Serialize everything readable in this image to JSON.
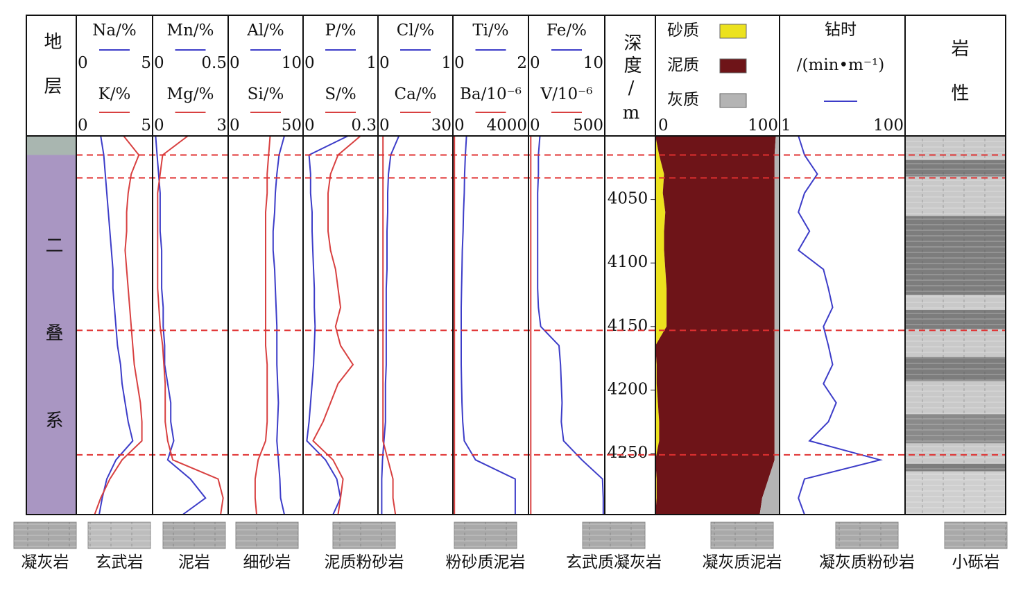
{
  "chart_data": {
    "type": "well_log",
    "strata": {
      "title": "地层",
      "units": [
        {
          "top": 4000,
          "bottom": 4015,
          "color": "#a9b6b0"
        },
        {
          "top": 4015,
          "bottom": 4298,
          "label": "二叠系",
          "color": "#a996c2"
        }
      ]
    },
    "depth": {
      "title": "深度/m",
      "lim": [
        4000,
        4298
      ],
      "ticks": [
        4050,
        4100,
        4150,
        4200,
        4250
      ],
      "values": [
        4000,
        4015,
        4030,
        4045,
        4060,
        4075,
        4090,
        4105,
        4120,
        4135,
        4150,
        4165,
        4180,
        4195,
        4210,
        4225,
        4240,
        4255,
        4270,
        4285,
        4298
      ]
    },
    "tracks": [
      {
        "series": [
          {
            "name": "Na/%",
            "color": "#3c3cc8",
            "xlim": [
              0,
              5
            ],
            "xticks": [
              0,
              5
            ],
            "values": [
              1.6,
              1.8,
              1.9,
              2.0,
              2.1,
              2.2,
              2.3,
              2.4,
              2.4,
              2.5,
              2.6,
              2.7,
              2.9,
              3.0,
              3.2,
              3.4,
              3.7,
              2.6,
              2.0,
              1.7,
              1.5
            ]
          },
          {
            "name": "K/%",
            "color": "#d84040",
            "xlim": [
              0,
              5
            ],
            "xticks": [
              0,
              5
            ],
            "values": [
              3.1,
              4.1,
              3.6,
              3.4,
              3.3,
              3.3,
              3.2,
              3.3,
              3.4,
              3.5,
              3.6,
              3.7,
              3.8,
              4.0,
              4.2,
              4.3,
              4.3,
              3.0,
              2.2,
              1.6,
              1.2
            ]
          }
        ]
      },
      {
        "series": [
          {
            "name": "Mn/%",
            "color": "#3c3cc8",
            "xlim": [
              0,
              0.5
            ],
            "xticks": [
              0,
              0.5
            ],
            "values": [
              0.02,
              0.03,
              0.04,
              0.05,
              0.05,
              0.05,
              0.06,
              0.06,
              0.06,
              0.07,
              0.07,
              0.08,
              0.08,
              0.1,
              0.12,
              0.12,
              0.14,
              0.1,
              0.25,
              0.35,
              0.2
            ]
          },
          {
            "name": "Mg/%",
            "color": "#d84040",
            "xlim": [
              0,
              3
            ],
            "xticks": [
              0,
              3
            ],
            "values": [
              1.4,
              0.4,
              0.3,
              0.2,
              0.2,
              0.2,
              0.2,
              0.2,
              0.2,
              0.25,
              0.3,
              0.4,
              0.45,
              0.5,
              0.5,
              0.5,
              0.6,
              0.8,
              2.6,
              2.8,
              2.7
            ]
          }
        ]
      },
      {
        "series": [
          {
            "name": "Al/%",
            "color": "#3c3cc8",
            "xlim": [
              0,
              10
            ],
            "xticks": [
              0,
              10
            ],
            "values": [
              7.5,
              6.8,
              6.5,
              6.3,
              6.2,
              6.0,
              6.0,
              6.2,
              6.3,
              6.4,
              6.5,
              6.5,
              6.5,
              6.6,
              6.7,
              6.6,
              6.5,
              6.7,
              6.9,
              7.0,
              7.5
            ]
          },
          {
            "name": "Si/%",
            "color": "#d84040",
            "xlim": [
              0,
              50
            ],
            "xticks": [
              0,
              50
            ],
            "values": [
              28,
              27,
              26,
              26,
              25,
              25,
              25,
              25,
              25,
              25,
              25,
              25,
              26,
              26,
              26,
              26,
              25,
              20,
              18,
              18,
              19
            ]
          }
        ]
      },
      {
        "series": [
          {
            "name": "P/%",
            "color": "#3c3cc8",
            "xlim": [
              0,
              1
            ],
            "xticks": [
              0,
              1
            ],
            "values": [
              0.6,
              0.08,
              0.1,
              0.1,
              0.12,
              0.12,
              0.13,
              0.14,
              0.15,
              0.15,
              0.16,
              0.15,
              0.14,
              0.12,
              0.1,
              0.08,
              0.05,
              0.3,
              0.45,
              0.5,
              0.4
            ]
          },
          {
            "name": "S/%",
            "color": "#d84040",
            "xlim": [
              0,
              0.3
            ],
            "xticks": [
              0,
              0.3
            ],
            "values": [
              0.23,
              0.14,
              0.11,
              0.1,
              0.1,
              0.1,
              0.11,
              0.13,
              0.14,
              0.15,
              0.13,
              0.15,
              0.2,
              0.14,
              0.11,
              0.08,
              0.04,
              0.12,
              0.16,
              0.15,
              0.14
            ]
          }
        ]
      },
      {
        "series": [
          {
            "name": "Cl/%",
            "color": "#3c3cc8",
            "xlim": [
              0,
              1
            ],
            "xticks": [
              0,
              1
            ],
            "values": [
              0.28,
              0.17,
              0.14,
              0.13,
              0.13,
              0.12,
              0.12,
              0.12,
              0.11,
              0.11,
              0.11,
              0.11,
              0.11,
              0.1,
              0.1,
              0.1,
              0.08,
              0.06,
              0.05,
              0.05,
              0.05
            ]
          },
          {
            "name": "Ca/%",
            "color": "#d84040",
            "xlim": [
              0,
              30
            ],
            "xticks": [
              0,
              30
            ],
            "values": [
              2,
              2,
              2,
              2,
              2,
              2,
              2,
              2,
              2,
              2,
              2,
              2,
              2,
              2,
              2,
              2,
              2,
              4,
              6,
              6,
              7
            ]
          }
        ]
      },
      {
        "series": [
          {
            "name": "Ti/%",
            "color": "#3c3cc8",
            "xlim": [
              0,
              2
            ],
            "xticks": [
              0,
              2
            ],
            "values": [
              0.36,
              0.33,
              0.31,
              0.3,
              0.28,
              0.27,
              0.25,
              0.24,
              0.23,
              0.22,
              0.22,
              0.22,
              0.22,
              0.23,
              0.24,
              0.26,
              0.3,
              0.6,
              1.65,
              1.65,
              1.65
            ]
          },
          {
            "name": "Ba/10⁻⁶",
            "color": "#d84040",
            "xlim": [
              0,
              4000
            ],
            "xticks": [
              0,
              4000
            ],
            "values": [
              80,
              80,
              80,
              80,
              80,
              80,
              80,
              80,
              80,
              80,
              80,
              80,
              80,
              80,
              80,
              80,
              80,
              80,
              80,
              80,
              80
            ]
          }
        ]
      },
      {
        "series": [
          {
            "name": "Fe/%",
            "color": "#3c3cc8",
            "xlim": [
              0,
              10
            ],
            "xticks": [
              0,
              10
            ],
            "values": [
              1.5,
              1.3,
              1.3,
              1.2,
              1.2,
              1.2,
              1.2,
              1.2,
              1.2,
              1.3,
              1.6,
              4.0,
              4.2,
              4.3,
              4.4,
              4.3,
              4.6,
              7.0,
              9.7,
              9.8,
              9.8
            ]
          },
          {
            "name": "V/10⁻⁶",
            "color": "#d84040",
            "xlim": [
              0,
              500
            ],
            "xticks": [
              0,
              500
            ],
            "values": [
              15,
              15,
              15,
              15,
              15,
              15,
              15,
              15,
              15,
              15,
              15,
              15,
              15,
              15,
              15,
              15,
              15,
              15,
              15,
              15,
              15
            ]
          }
        ]
      }
    ],
    "lithology_percent": {
      "xlim": [
        0,
        100
      ],
      "xticks": [
        0,
        100
      ],
      "series": [
        {
          "name": "砂质",
          "color": "#ece21e",
          "values": [
            0,
            3,
            7,
            6,
            8,
            7,
            7,
            8,
            9,
            9,
            9,
            0,
            1,
            1,
            2,
            3,
            3,
            0,
            1,
            1,
            0
          ]
        },
        {
          "name": "泥质",
          "color": "#6e1418",
          "values": [
            97,
            93,
            89,
            90,
            88,
            89,
            89,
            88,
            87,
            87,
            87,
            96,
            95,
            95,
            94,
            93,
            93,
            96,
            90,
            85,
            84
          ]
        },
        {
          "name": "灰质",
          "color": "#b4b4b4",
          "values": [
            3,
            4,
            4,
            4,
            4,
            4,
            4,
            4,
            4,
            4,
            4,
            4,
            4,
            4,
            4,
            4,
            4,
            4,
            9,
            14,
            16
          ]
        }
      ]
    },
    "drill_time": {
      "title": "钻时",
      "unit": "/(min•m⁻¹)",
      "color": "#3c3cc8",
      "log": true,
      "xlim": [
        1,
        100
      ],
      "xticks": [
        1,
        100
      ],
      "values": [
        2,
        2.5,
        4,
        2.5,
        2,
        3,
        2,
        5,
        6,
        7,
        5,
        6,
        7,
        5,
        8,
        6,
        3,
        40,
        2.5,
        2,
        2.5
      ]
    },
    "boundaries": {
      "color": "#e03030",
      "values": [
        4015,
        4033,
        4153,
        4251
      ]
    },
    "lithology": {
      "title": "岩性",
      "intervals": [
        {
          "top": 4000,
          "bottom": 4019,
          "color": "#c9c9c9"
        },
        {
          "top": 4019,
          "bottom": 4032,
          "color": "#7d7d7d"
        },
        {
          "top": 4032,
          "bottom": 4063,
          "color": "#c9c9c9"
        },
        {
          "top": 4063,
          "bottom": 4125,
          "color": "#7d7d7d"
        },
        {
          "top": 4125,
          "bottom": 4137,
          "color": "#c9c9c9"
        },
        {
          "top": 4137,
          "bottom": 4152,
          "color": "#7d7d7d"
        },
        {
          "top": 4152,
          "bottom": 4174,
          "color": "#c9c9c9"
        },
        {
          "top": 4174,
          "bottom": 4193,
          "color": "#7d7d7d"
        },
        {
          "top": 4193,
          "bottom": 4219,
          "color": "#c9c9c9"
        },
        {
          "top": 4219,
          "bottom": 4242,
          "color": "#8a8a8a"
        },
        {
          "top": 4242,
          "bottom": 4258,
          "color": "#c9c9c9"
        },
        {
          "top": 4258,
          "bottom": 4264,
          "color": "#7d7d7d"
        },
        {
          "top": 4264,
          "bottom": 4298,
          "color": "#cfcfcf"
        }
      ]
    },
    "legend": [
      "凝灰岩",
      "玄武岩",
      "泥岩",
      "细砂岩",
      "泥质粉砂岩",
      "粉砂质泥岩",
      "玄武质凝灰岩",
      "凝灰质泥岩",
      "凝灰质粉砂岩",
      "小砾岩"
    ]
  }
}
